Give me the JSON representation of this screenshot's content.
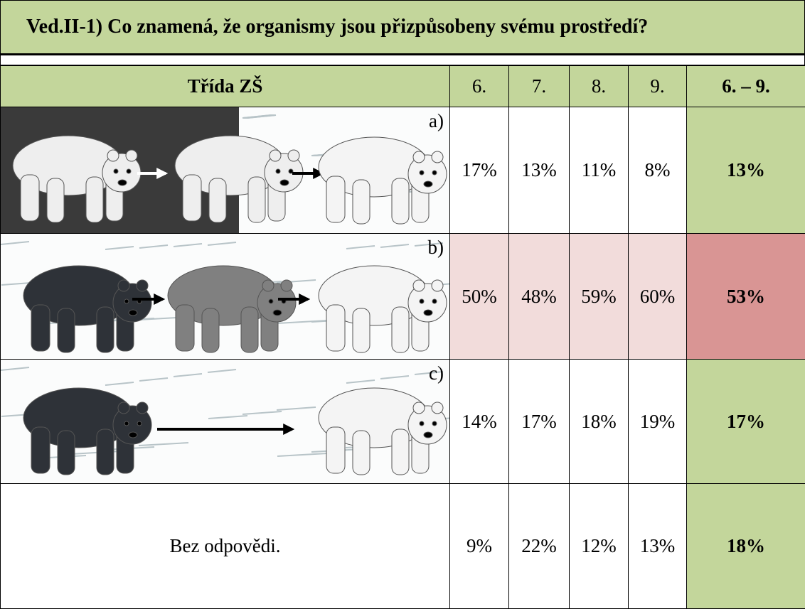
{
  "title": "Ved.II-1) Co znamená, že organismy jsou přizpůsobeny svému prostředí?",
  "header": [
    "Třída ZŠ",
    "6.",
    "7.",
    "8.",
    "9.",
    "6. – 9."
  ],
  "rows": [
    {
      "label": "a)",
      "values": [
        "17%",
        "13%",
        "11%",
        "8%",
        "13%"
      ]
    },
    {
      "label": "b)",
      "values": [
        "50%",
        "48%",
        "59%",
        "60%",
        "53%"
      ]
    },
    {
      "label": "c)",
      "values": [
        "14%",
        "17%",
        "18%",
        "19%",
        "17%"
      ]
    },
    {
      "label": "Bez odpovědi.",
      "values": [
        "9%",
        "22%",
        "12%",
        "13%",
        "18%"
      ]
    }
  ]
}
